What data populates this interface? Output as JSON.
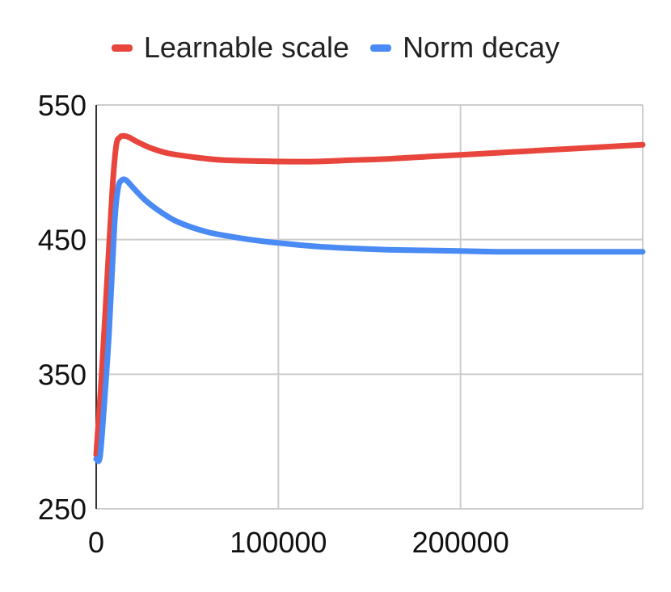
{
  "chart_data": {
    "type": "line",
    "title": "",
    "xlabel": "",
    "ylabel": "",
    "xlim": [
      0,
      300000
    ],
    "ylim": [
      250,
      550
    ],
    "x_ticks": [
      0,
      100000,
      200000
    ],
    "y_ticks": [
      250,
      350,
      450,
      550
    ],
    "x_tick_labels": [
      "0",
      "100000",
      "200000"
    ],
    "y_tick_labels": [
      "250",
      "350",
      "450",
      "550"
    ],
    "grid": true,
    "legend_position": "top-center",
    "series": [
      {
        "name": "Learnable scale",
        "color": "#e8453c",
        "points": [
          [
            0,
            290
          ],
          [
            3000,
            350
          ],
          [
            6000,
            420
          ],
          [
            9000,
            490
          ],
          [
            11000,
            520
          ],
          [
            13000,
            526
          ],
          [
            15000,
            527
          ],
          [
            18000,
            526
          ],
          [
            22000,
            523
          ],
          [
            30000,
            518
          ],
          [
            40000,
            514
          ],
          [
            55000,
            511
          ],
          [
            70000,
            509
          ],
          [
            85000,
            508.5
          ],
          [
            100000,
            508
          ],
          [
            120000,
            508
          ],
          [
            140000,
            509
          ],
          [
            160000,
            510
          ],
          [
            180000,
            511.5
          ],
          [
            200000,
            513
          ],
          [
            220000,
            514.5
          ],
          [
            240000,
            516
          ],
          [
            260000,
            517.5
          ],
          [
            280000,
            519
          ],
          [
            300000,
            520.5
          ]
        ]
      },
      {
        "name": "Norm decay",
        "color": "#4a8af4",
        "points": [
          [
            0,
            287
          ],
          [
            2000,
            288
          ],
          [
            4000,
            320
          ],
          [
            7000,
            380
          ],
          [
            10000,
            460
          ],
          [
            12000,
            488
          ],
          [
            14000,
            494
          ],
          [
            16000,
            494.5
          ],
          [
            18000,
            492
          ],
          [
            22000,
            486
          ],
          [
            28000,
            478
          ],
          [
            36000,
            470
          ],
          [
            45000,
            463
          ],
          [
            60000,
            456
          ],
          [
            75000,
            452
          ],
          [
            90000,
            449
          ],
          [
            100000,
            447.5
          ],
          [
            120000,
            445
          ],
          [
            140000,
            443.5
          ],
          [
            160000,
            442.5
          ],
          [
            180000,
            442
          ],
          [
            200000,
            441.5
          ],
          [
            220000,
            441
          ],
          [
            240000,
            441
          ],
          [
            260000,
            441
          ],
          [
            280000,
            441
          ],
          [
            300000,
            441
          ]
        ]
      }
    ]
  }
}
